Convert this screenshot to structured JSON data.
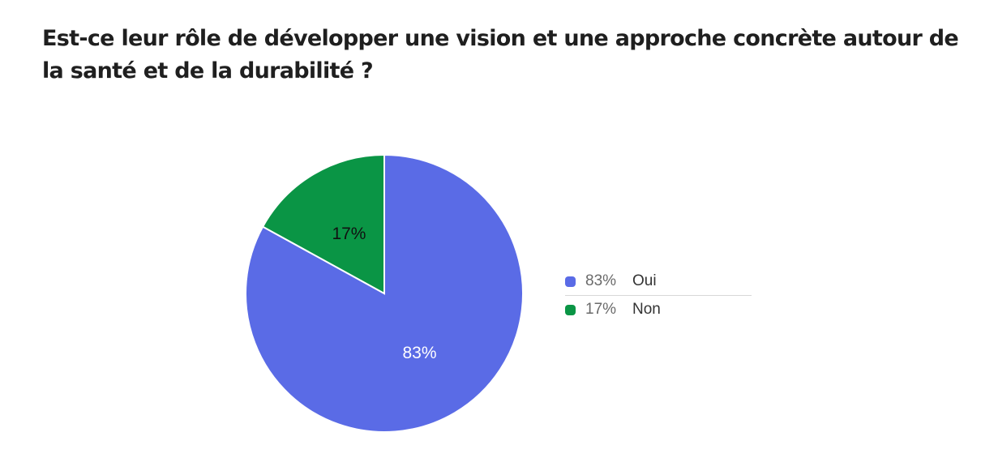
{
  "title": "Est-ce leur rôle de développer une vision et une approche concrète autour de la santé et de la durabilité ?",
  "chart_data": {
    "type": "pie",
    "title": "Est-ce leur rôle de développer une vision et une approche concrète autour de la santé et de la durabilité ?",
    "categories": [
      "Oui",
      "Non"
    ],
    "values": [
      83,
      17
    ],
    "colors": [
      "#5a6be6",
      "#0a9545"
    ],
    "slice_labels": [
      "83%",
      "17%"
    ],
    "legend": [
      {
        "pct": "83%",
        "label": "Oui",
        "color": "#5a6be6"
      },
      {
        "pct": "17%",
        "label": "Non",
        "color": "#0a9545"
      }
    ],
    "legend_position": "right"
  }
}
